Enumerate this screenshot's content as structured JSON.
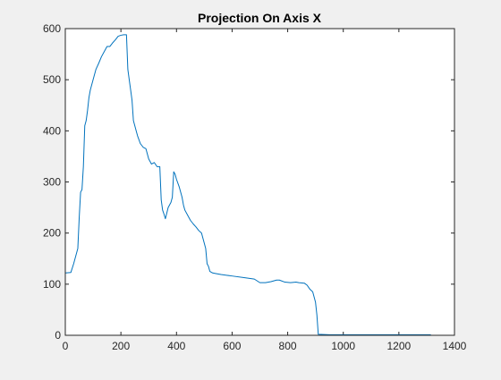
{
  "chart_data": {
    "type": "line",
    "title": "Projection On Axis X",
    "xlabel": "",
    "ylabel": "",
    "xlim": [
      0,
      1400
    ],
    "ylim": [
      0,
      600
    ],
    "xticks": [
      0,
      200,
      400,
      600,
      800,
      1000,
      1200,
      1400
    ],
    "yticks": [
      0,
      100,
      200,
      300,
      400,
      500,
      600
    ],
    "xtick_labels": [
      "0",
      "200",
      "400",
      "600",
      "800",
      "1000",
      "1200",
      "1400"
    ],
    "ytick_labels": [
      "0",
      "100",
      "200",
      "300",
      "400",
      "500",
      "600"
    ],
    "grid": false,
    "legend": "none",
    "series": [
      {
        "color": "#0072BD",
        "x": [
          1,
          20,
          30,
          45,
          50,
          55,
          60,
          65,
          70,
          75,
          80,
          85,
          90,
          95,
          100,
          110,
          120,
          130,
          140,
          150,
          160,
          170,
          180,
          190,
          200,
          210,
          220,
          225,
          230,
          235,
          240,
          245,
          250,
          255,
          260,
          270,
          280,
          290,
          300,
          310,
          320,
          330,
          340,
          345,
          350,
          355,
          360,
          370,
          380,
          385,
          390,
          395,
          400,
          410,
          420,
          425,
          430,
          440,
          450,
          460,
          470,
          480,
          490,
          500,
          505,
          510,
          515,
          520,
          530,
          540,
          560,
          600,
          640,
          680,
          700,
          720,
          740,
          760,
          770,
          790,
          810,
          830,
          840,
          860,
          870,
          880,
          890,
          900,
          905,
          910,
          950,
          1000,
          1100,
          1200,
          1300,
          1315
        ],
        "y": [
          122,
          123,
          140,
          170,
          230,
          280,
          285,
          330,
          410,
          420,
          440,
          465,
          480,
          490,
          500,
          520,
          532,
          545,
          555,
          565,
          565,
          572,
          578,
          585,
          587,
          588,
          588,
          520,
          500,
          480,
          460,
          420,
          410,
          400,
          390,
          375,
          368,
          365,
          345,
          335,
          338,
          330,
          330,
          265,
          245,
          237,
          228,
          250,
          260,
          270,
          320,
          315,
          305,
          290,
          270,
          255,
          245,
          235,
          225,
          218,
          212,
          205,
          200,
          180,
          170,
          140,
          135,
          125,
          122,
          121,
          119,
          116,
          113,
          110,
          103,
          103,
          105,
          108,
          108,
          104,
          103,
          104,
          103,
          102,
          98,
          90,
          85,
          65,
          40,
          2,
          1,
          1,
          1,
          1,
          1,
          1
        ]
      }
    ]
  }
}
